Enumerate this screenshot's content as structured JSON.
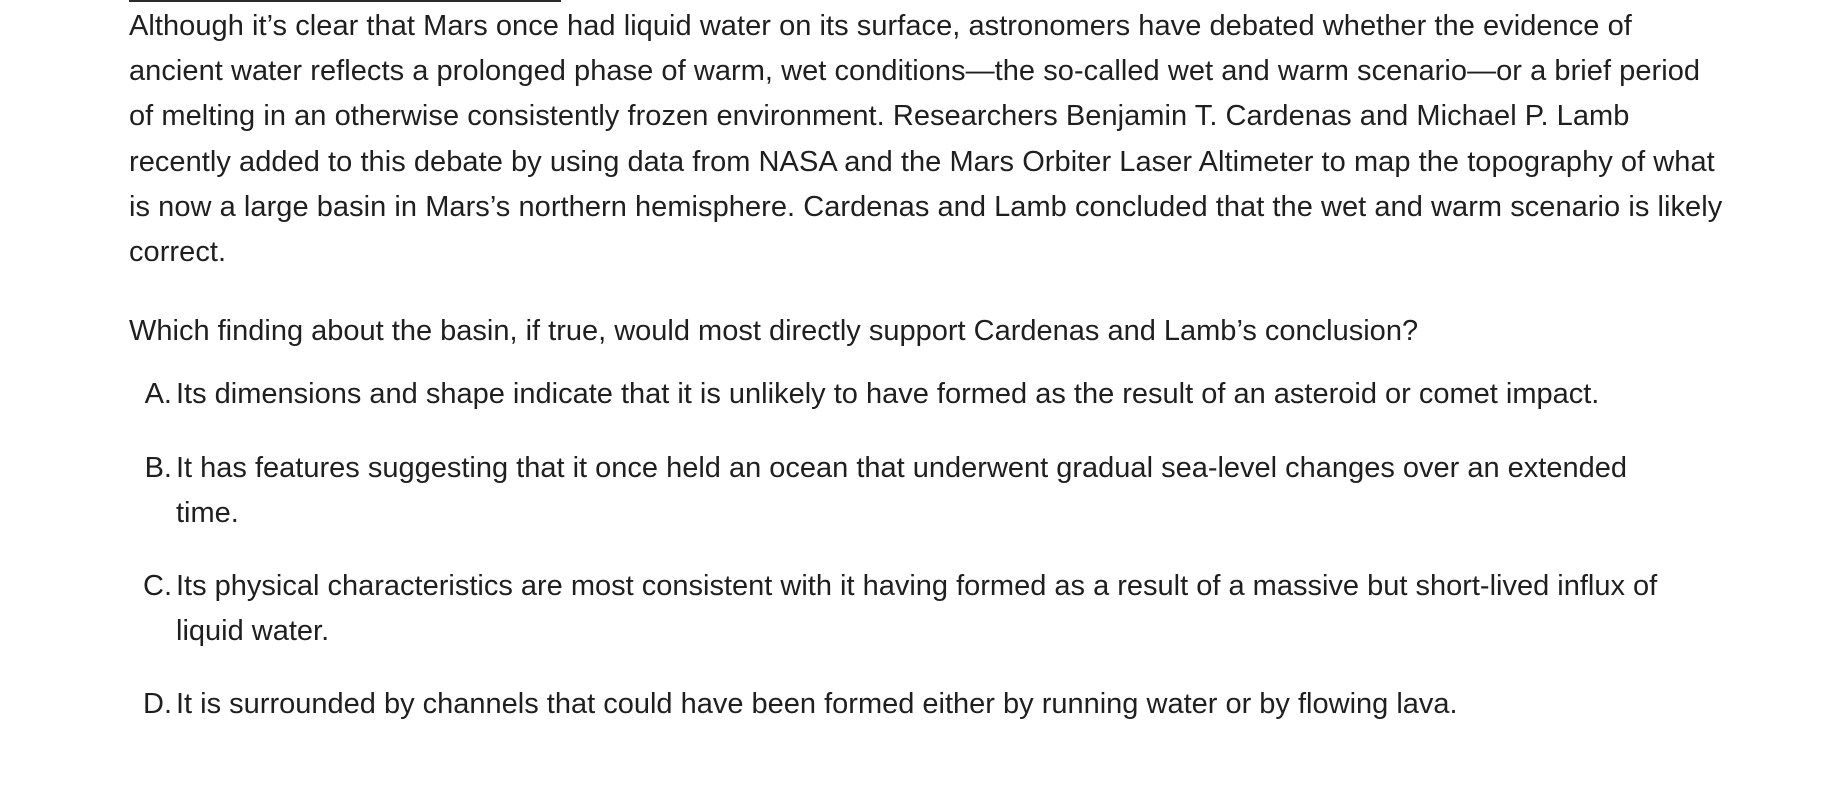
{
  "passage": {
    "text": "Although it’s clear that Mars once had liquid water on its surface, astronomers have debated whether the evidence of ancient water reflects a prolonged phase of warm, wet conditions—the so-called wet and warm scenario—or a brief period of melting in an otherwise consistently frozen environment. Researchers Benjamin T. Cardenas and Michael P. Lamb recently added to this debate by using data from NASA and the Mars Orbiter Laser Altimeter to map the topography of what is now a large basin in Mars’s northern hemisphere. Cardenas and Lamb concluded that the wet and warm scenario is likely correct."
  },
  "question": {
    "text": "Which finding about the basin, if true, would most directly support Cardenas and Lamb’s conclusion?"
  },
  "choices": [
    {
      "letter": "A.",
      "text": "Its dimensions and shape indicate that it is unlikely to have formed as the result of an asteroid or comet impact."
    },
    {
      "letter": "B.",
      "text": "It has features suggesting that it once held an ocean that underwent gradual sea-level changes over an extended time."
    },
    {
      "letter": "C.",
      "text": "Its physical characteristics are most consistent with it having formed as a result of a massive but short-lived influx of liquid water."
    },
    {
      "letter": "D.",
      "text": "It is surrounded by channels that could have been formed either by running water or by flowing lava."
    }
  ]
}
